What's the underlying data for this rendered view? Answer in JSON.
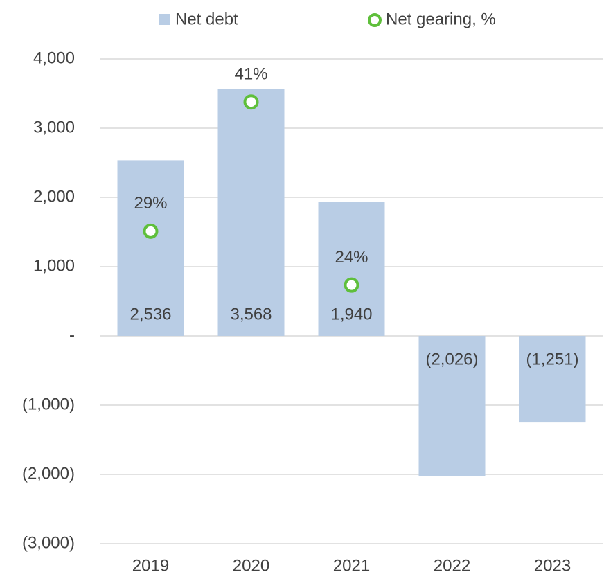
{
  "chart_data": {
    "type": "bar",
    "categories": [
      "2019",
      "2020",
      "2021",
      "2022",
      "2023"
    ],
    "series": [
      {
        "name": "Net debt",
        "type": "bar",
        "color": "#b9cde5",
        "values": [
          2536,
          3568,
          1940,
          -2026,
          -1251
        ],
        "value_labels": [
          "2,536",
          "3,568",
          "1,940",
          "(2,026)",
          "(1,251)"
        ]
      },
      {
        "name": "Net gearing, %",
        "type": "scatter",
        "axis": "y2",
        "color": "#5fbf3b",
        "values": [
          29,
          41,
          24,
          null,
          null
        ],
        "value_labels": [
          "29%",
          "41%",
          "24%",
          null,
          null
        ]
      }
    ],
    "ylim": [
      -3000,
      4000
    ],
    "yticks": [
      {
        "value": 4000,
        "label": "4,000"
      },
      {
        "value": 3000,
        "label": "3,000"
      },
      {
        "value": 2000,
        "label": "2,000"
      },
      {
        "value": 1000,
        "label": "1,000"
      },
      {
        "value": 0,
        "label": "-"
      },
      {
        "value": -1000,
        "label": "(1,000)"
      },
      {
        "value": -2000,
        "label": "(2,000)"
      },
      {
        "value": -3000,
        "label": "(3,000)"
      }
    ],
    "y2lim": [
      0,
      45
    ],
    "grid": true,
    "legend": "top"
  }
}
